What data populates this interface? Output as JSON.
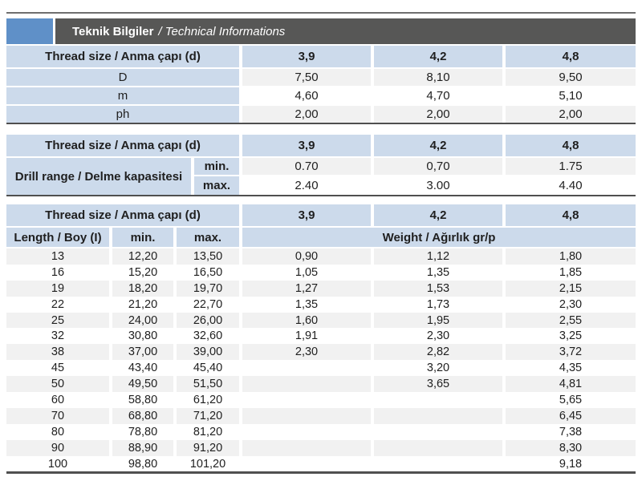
{
  "title_bar": {
    "title_bold": "Teknik Bilgiler",
    "title_italic": "/ Technical Informations"
  },
  "colors": {
    "accent_blue": "#5f90c8",
    "title_strip_gray": "#575756",
    "header_cell_blue": "#ccdaeb",
    "stripe_gray": "#f1f1f1",
    "rule_dark": "#4f4f4f",
    "top_rule_gray": "#6f6f6f",
    "text": "#1f1f1f"
  },
  "thread_header_label": "Thread size / Anma çapı (d)",
  "thread_sizes": [
    "3,9",
    "4,2",
    "4,8"
  ],
  "table_specs": {
    "rows": [
      {
        "label": "D",
        "values": [
          "7,50",
          "8,10",
          "9,50"
        ]
      },
      {
        "label": "m",
        "values": [
          "4,60",
          "4,70",
          "5,10"
        ]
      },
      {
        "label": "ph",
        "values": [
          "2,00",
          "2,00",
          "2,00"
        ]
      }
    ]
  },
  "table_drill": {
    "label": "Drill range / Delme kapasitesi",
    "min_label": "min.",
    "max_label": "max.",
    "min_values": [
      "0.70",
      "0,70",
      "1.75"
    ],
    "max_values": [
      "2.40",
      "3.00",
      "4.40"
    ]
  },
  "table_lengths": {
    "length_label": "Length / Boy (I)",
    "min_label": "min.",
    "max_label": "max.",
    "weight_label": "Weight / Ağırlık gr/p",
    "rows": [
      {
        "length": "13",
        "min": "12,20",
        "max": "13,50",
        "weights": [
          "0,90",
          "1,12",
          "1,80"
        ]
      },
      {
        "length": "16",
        "min": "15,20",
        "max": "16,50",
        "weights": [
          "1,05",
          "1,35",
          "1,85"
        ]
      },
      {
        "length": "19",
        "min": "18,20",
        "max": "19,70",
        "weights": [
          "1,27",
          "1,53",
          "2,15"
        ]
      },
      {
        "length": "22",
        "min": "21,20",
        "max": "22,70",
        "weights": [
          "1,35",
          "1,73",
          "2,30"
        ]
      },
      {
        "length": "25",
        "min": "24,00",
        "max": "26,00",
        "weights": [
          "1,60",
          "1,95",
          "2,55"
        ]
      },
      {
        "length": "32",
        "min": "30,80",
        "max": "32,60",
        "weights": [
          "1,91",
          "2,30",
          "3,25"
        ]
      },
      {
        "length": "38",
        "min": "37,00",
        "max": "39,00",
        "weights": [
          "2,30",
          "2,82",
          "3,72"
        ]
      },
      {
        "length": "45",
        "min": "43,40",
        "max": "45,40",
        "weights": [
          "",
          "3,20",
          "4,35"
        ]
      },
      {
        "length": "50",
        "min": "49,50",
        "max": "51,50",
        "weights": [
          "",
          "3,65",
          "4,81"
        ]
      },
      {
        "length": "60",
        "min": "58,80",
        "max": "61,20",
        "weights": [
          "",
          "",
          "5,65"
        ]
      },
      {
        "length": "70",
        "min": "68,80",
        "max": "71,20",
        "weights": [
          "",
          "",
          "6,45"
        ]
      },
      {
        "length": "80",
        "min": "78,80",
        "max": "81,20",
        "weights": [
          "",
          "",
          "7,38"
        ]
      },
      {
        "length": "90",
        "min": "88,90",
        "max": "91,20",
        "weights": [
          "",
          "",
          "8,30"
        ]
      },
      {
        "length": "100",
        "min": "98,80",
        "max": "101,20",
        "weights": [
          "",
          "",
          "9,18"
        ]
      }
    ]
  }
}
